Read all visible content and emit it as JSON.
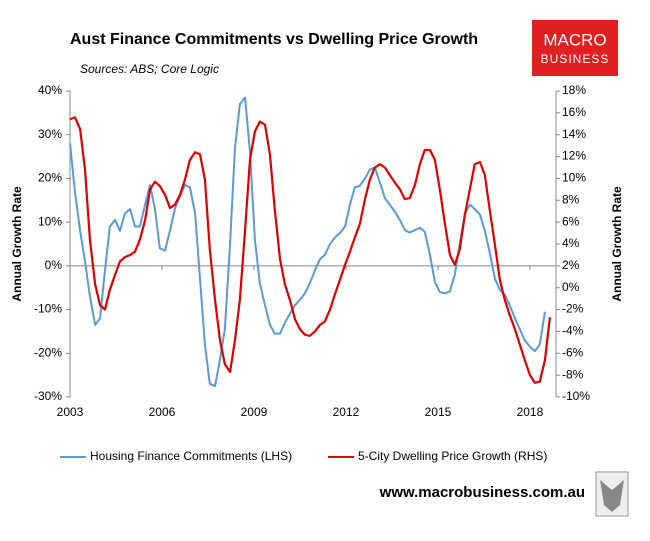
{
  "chart_data": {
    "type": "line",
    "title": "Aust Finance Commitments vs Dwelling Price Growth",
    "subtitle": "Sources: ABS; Core Logic",
    "logo": [
      "MACRO",
      "BUSINESS"
    ],
    "footer": "www.macrobusiness.com.au",
    "ylabel": "Annual Growth Rate",
    "y2label": "Annual Growth Rate",
    "x": [
      2003.0,
      2003.16,
      2003.33,
      2003.49,
      2003.65,
      2003.82,
      2003.98,
      2004.14,
      2004.3,
      2004.47,
      2004.63,
      2004.79,
      2004.96,
      2005.12,
      2005.28,
      2005.45,
      2005.61,
      2005.77,
      2005.93,
      2006.1,
      2006.26,
      2006.42,
      2006.59,
      2006.75,
      2006.91,
      2007.08,
      2007.24,
      2007.4,
      2007.56,
      2007.73,
      2007.89,
      2008.05,
      2008.22,
      2008.38,
      2008.54,
      2008.71,
      2008.87,
      2009.03,
      2009.19,
      2009.36,
      2009.52,
      2009.68,
      2009.85,
      2010.01,
      2010.17,
      2010.34,
      2010.5,
      2010.66,
      2010.82,
      2010.99,
      2011.15,
      2011.31,
      2011.48,
      2011.64,
      2011.8,
      2011.97,
      2012.13,
      2012.29,
      2012.45,
      2012.62,
      2012.78,
      2012.94,
      2013.11,
      2013.27,
      2013.43,
      2013.6,
      2013.76,
      2013.92,
      2014.08,
      2014.25,
      2014.41,
      2014.57,
      2014.74,
      2014.9,
      2015.06,
      2015.23,
      2015.39,
      2015.55,
      2015.71,
      2015.88,
      2016.04,
      2016.2,
      2016.37,
      2016.53,
      2016.69,
      2016.86,
      2017.02,
      2017.18,
      2017.34,
      2017.51,
      2017.67,
      2017.83,
      2018.0,
      2018.16,
      2018.32,
      2018.49,
      2018.65
    ],
    "series": [
      {
        "name": "Housing Finance Commitments (LHS)",
        "color": "#5b9bd5",
        "axis": "y",
        "values": [
          28,
          17,
          8,
          1,
          -7,
          -13.5,
          -12,
          -1,
          9,
          10.5,
          8,
          12,
          13,
          9,
          9,
          14,
          18.5,
          13,
          4,
          3.5,
          8,
          13,
          16,
          18.5,
          18,
          12,
          -3,
          -18,
          -27,
          -27.5,
          -21.5,
          -14.5,
          5,
          27,
          37,
          38.5,
          26,
          6,
          -4,
          -9,
          -13.5,
          -15.5,
          -15.5,
          -13,
          -11,
          -9,
          -7.7,
          -6.3,
          -4,
          -1,
          1.5,
          2.5,
          5,
          6.5,
          7.5,
          9,
          14,
          18,
          18.3,
          20,
          22,
          22.5,
          19,
          15.5,
          14,
          12.3,
          10.5,
          8.2,
          7.6,
          8.2,
          8.7,
          7.8,
          2.5,
          -3.7,
          -6,
          -6.3,
          -5.8,
          -2,
          5,
          12,
          14,
          13,
          11.7,
          8,
          3,
          -3,
          -5.5,
          -6.6,
          -9,
          -12,
          -14.5,
          -17,
          -18.5,
          -19.5,
          -18,
          -10.5,
          null
        ]
      },
      {
        "name": "5-City Dwelling Price Growth (RHS)",
        "color": "#e00000",
        "axis": "y2",
        "values": [
          15.4,
          15.6,
          14.5,
          10.8,
          4.4,
          0.3,
          -1.6,
          -2,
          -0.2,
          1.2,
          2.4,
          2.8,
          3,
          3.3,
          4.4,
          6.2,
          9,
          9.7,
          9.3,
          8.5,
          7.3,
          7.6,
          8.5,
          9.9,
          11.7,
          12.4,
          12.2,
          9.9,
          3.5,
          -1.1,
          -4.8,
          -7,
          -7.7,
          -4.8,
          -1.1,
          5.3,
          11.7,
          14.3,
          15.2,
          14.9,
          12.2,
          7.1,
          2.6,
          0.3,
          -1.1,
          -2.9,
          -3.8,
          -4.3,
          -4.4,
          -4,
          -3.4,
          -3.1,
          -2,
          -0.6,
          0.7,
          2.1,
          3.3,
          4.6,
          5.8,
          8.1,
          9.9,
          11,
          11.3,
          11,
          10.3,
          9.6,
          9,
          8.1,
          8.2,
          9.4,
          11.3,
          12.6,
          12.6,
          11.7,
          9,
          5.8,
          3,
          2.1,
          3.5,
          6.7,
          9,
          11.3,
          11.5,
          10.3,
          7.1,
          3.9,
          0.7,
          -1.1,
          -2.5,
          -3.8,
          -5.2,
          -6.6,
          -8,
          -8.7,
          -8.6,
          -6.6,
          -2.7
        ]
      }
    ],
    "xlim": [
      2003,
      2018.85
    ],
    "xticks": [
      2003,
      2006,
      2009,
      2012,
      2015,
      2018
    ],
    "ylim": [
      -30,
      40
    ],
    "yticks": [
      {
        "value": -30,
        "label": "-30%"
      },
      {
        "value": -20,
        "label": "-20%"
      },
      {
        "value": -10,
        "label": "-10%"
      },
      {
        "value": 0,
        "label": "0%"
      },
      {
        "value": 10,
        "label": "10%"
      },
      {
        "value": 20,
        "label": "20%"
      },
      {
        "value": 30,
        "label": "30%"
      },
      {
        "value": 40,
        "label": "40%"
      }
    ],
    "y2lim": [
      -10,
      18
    ],
    "y2ticks": [
      {
        "value": -10,
        "label": "-10%"
      },
      {
        "value": -8,
        "label": "-8%"
      },
      {
        "value": -6,
        "label": "-6%"
      },
      {
        "value": -4,
        "label": "-4%"
      },
      {
        "value": -2,
        "label": "-2%"
      },
      {
        "value": 0,
        "label": "0%"
      },
      {
        "value": 2,
        "label": "2%"
      },
      {
        "value": 4,
        "label": "4%"
      },
      {
        "value": 6,
        "label": "6%"
      },
      {
        "value": 8,
        "label": "8%"
      },
      {
        "value": 10,
        "label": "10%"
      },
      {
        "value": 12,
        "label": "12%"
      },
      {
        "value": 14,
        "label": "14%"
      },
      {
        "value": 16,
        "label": "16%"
      },
      {
        "value": 18,
        "label": "18%"
      }
    ],
    "legend": "bottom"
  }
}
